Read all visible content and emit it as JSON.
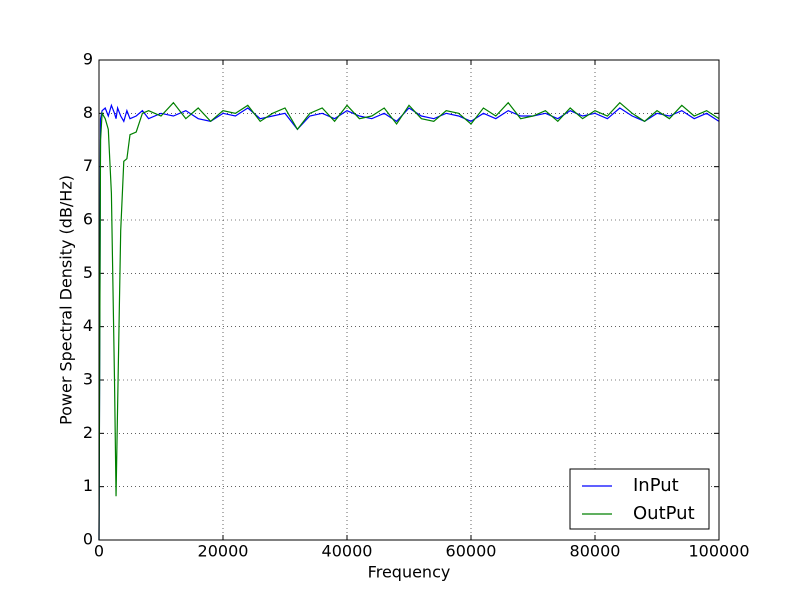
{
  "chart_data": {
    "type": "line",
    "x_label": "Frequency",
    "y_label": "Power Spectral Density (dB/Hz)",
    "x": [
      0,
      250,
      500,
      1000,
      1500,
      2000,
      2500,
      2750,
      3000,
      3500,
      4000,
      4500,
      5000,
      6000,
      7000,
      8000,
      10000,
      12000,
      14000,
      16000,
      18000,
      20000,
      22000,
      24000,
      26000,
      28000,
      30000,
      32000,
      34000,
      36000,
      38000,
      40000,
      42000,
      44000,
      46000,
      48000,
      50000,
      52000,
      54000,
      56000,
      58000,
      60000,
      62000,
      64000,
      66000,
      68000,
      70000,
      72000,
      74000,
      76000,
      78000,
      80000,
      82000,
      84000,
      86000,
      88000,
      90000,
      92000,
      94000,
      96000,
      98000,
      100000
    ],
    "series": [
      {
        "name": "InPut",
        "color": "#0000ff",
        "values": [
          0,
          7.9,
          8.05,
          8.1,
          7.95,
          8.15,
          8.0,
          7.9,
          8.1,
          7.95,
          7.85,
          8.05,
          7.9,
          7.95,
          8.05,
          7.9,
          8.0,
          7.95,
          8.05,
          7.9,
          7.85,
          8.0,
          7.95,
          8.1,
          7.9,
          7.95,
          8.0,
          7.7,
          7.95,
          8.0,
          7.9,
          8.05,
          7.95,
          7.9,
          8.0,
          7.85,
          8.1,
          7.95,
          7.9,
          8.0,
          7.95,
          7.85,
          8.0,
          7.9,
          8.05,
          7.95,
          7.95,
          8.0,
          7.9,
          8.05,
          7.95,
          8.0,
          7.9,
          8.1,
          7.95,
          7.85,
          8.0,
          7.95,
          8.05,
          7.9,
          8.0,
          7.85
        ]
      },
      {
        "name": "OutPut",
        "color": "#008000",
        "values": [
          0,
          7.5,
          8.0,
          7.9,
          7.7,
          6.5,
          3.0,
          0.82,
          2.5,
          5.8,
          7.1,
          7.15,
          7.6,
          7.65,
          8.0,
          8.05,
          7.95,
          8.2,
          7.9,
          8.1,
          7.85,
          8.05,
          8.0,
          8.15,
          7.85,
          8.0,
          8.1,
          7.7,
          8.0,
          8.1,
          7.85,
          8.15,
          7.9,
          7.95,
          8.1,
          7.8,
          8.15,
          7.9,
          7.85,
          8.05,
          8.0,
          7.8,
          8.1,
          7.95,
          8.2,
          7.9,
          7.95,
          8.05,
          7.85,
          8.1,
          7.9,
          8.05,
          7.95,
          8.2,
          8.0,
          7.85,
          8.05,
          7.9,
          8.15,
          7.95,
          8.05,
          7.9
        ]
      }
    ],
    "xlim": [
      0,
      100000
    ],
    "xticks": [
      0,
      20000,
      40000,
      60000,
      80000,
      100000
    ],
    "ylim": [
      0,
      9
    ],
    "yticks": [
      0,
      1,
      2,
      3,
      4,
      5,
      6,
      7,
      8,
      9
    ],
    "grid": true,
    "legend": "lower right"
  }
}
